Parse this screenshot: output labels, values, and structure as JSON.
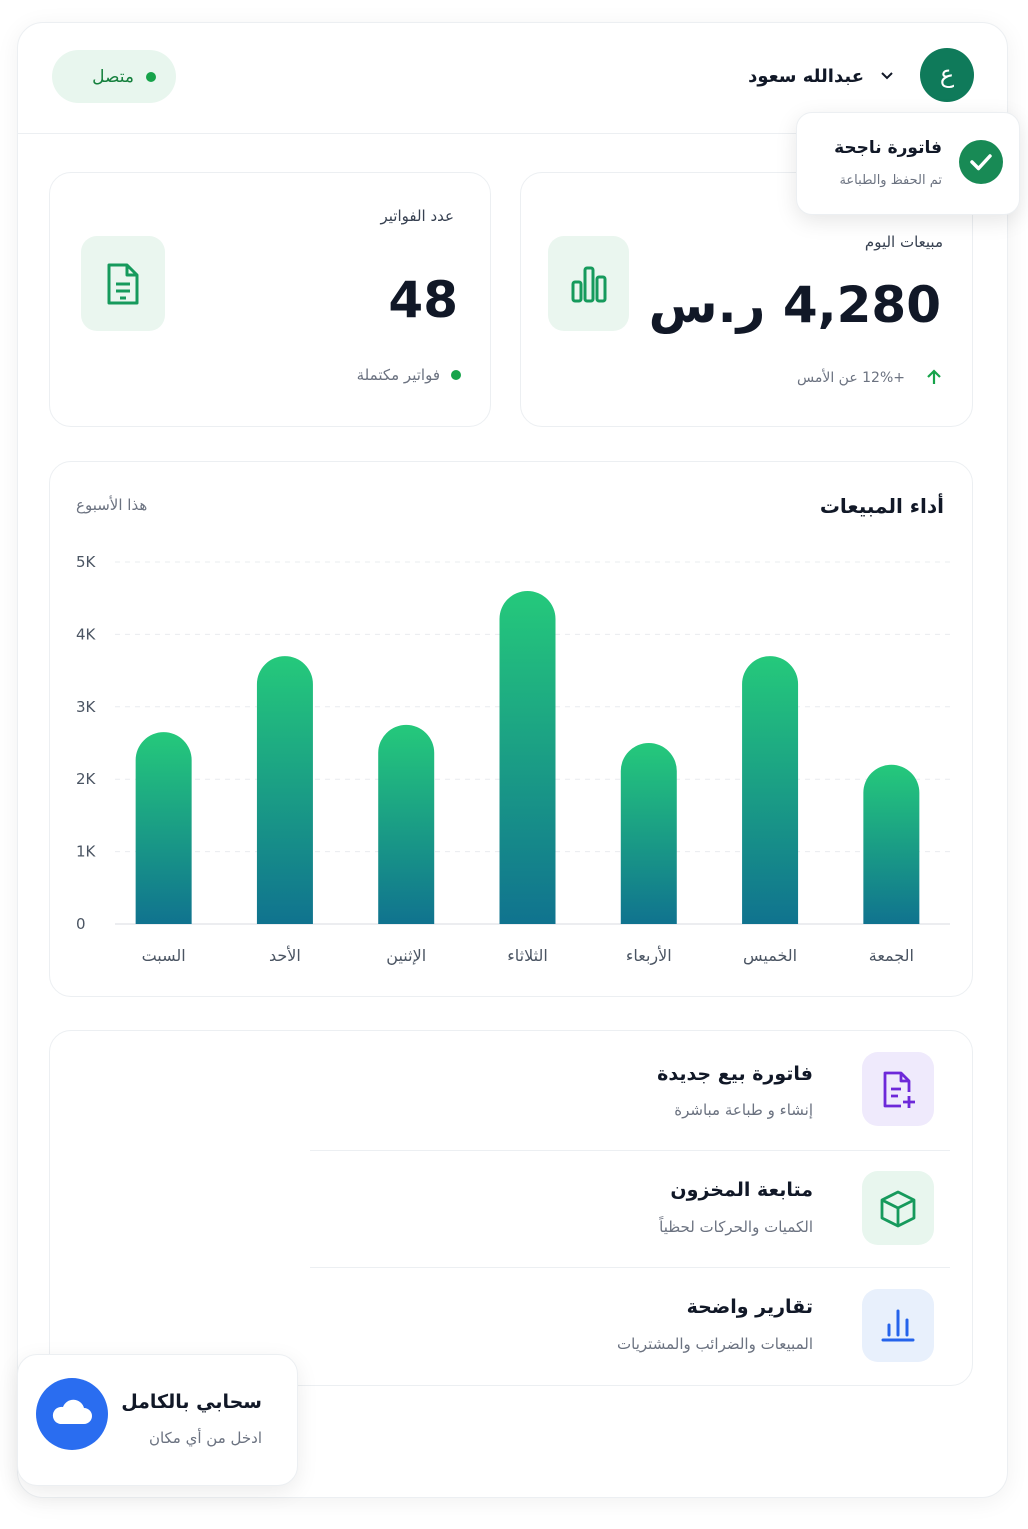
{
  "header": {
    "status": "متصل",
    "user_name": "عبدالله سعود",
    "avatar_letter": "ع"
  },
  "toast": {
    "title": "فاتورة ناجحة",
    "subtitle": "تم الحفظ والطباعة"
  },
  "stats": [
    {
      "label": "مبيعات اليوم",
      "value": "4,280 ر.س",
      "note": "+12% عن الأمس"
    },
    {
      "label": "عدد الفواتير",
      "value": "48",
      "note": "فواتير مكتملة"
    }
  ],
  "chart_data": {
    "type": "bar",
    "title": "أداء المبيعات",
    "subtitle": "هذا الأسبوع",
    "categories": [
      "السبت",
      "الأحد",
      "الإثنين",
      "الثلاثاء",
      "الأربعاء",
      "الخميس",
      "الجمعة"
    ],
    "values": [
      2650,
      3700,
      2750,
      4600,
      2500,
      3700,
      2200
    ],
    "gradient": [
      "#25c97b",
      "#10738f"
    ],
    "ylim": [
      0,
      5000
    ],
    "yticks": [
      0,
      {
        "value": 1000,
        "label": "1K"
      },
      {
        "value": 2000,
        "label": "2K"
      },
      {
        "value": 3000,
        "label": "3K"
      },
      {
        "value": 4000,
        "label": "4K"
      },
      {
        "value": 5000,
        "label": "5K"
      }
    ],
    "grid": true
  },
  "features": [
    {
      "title": "فاتورة بيع جديدة",
      "subtitle": "إنشاء و طباعة مباشرة"
    },
    {
      "title": "متابعة المخزون",
      "subtitle": "الكميات والحركات لحظياً"
    },
    {
      "title": "تقارير واضحة",
      "subtitle": "المبيعات والضرائب والمشتريات"
    }
  ],
  "cloud": {
    "title": "سحابي بالكامل",
    "subtitle": "ادخل من أي مكان"
  }
}
